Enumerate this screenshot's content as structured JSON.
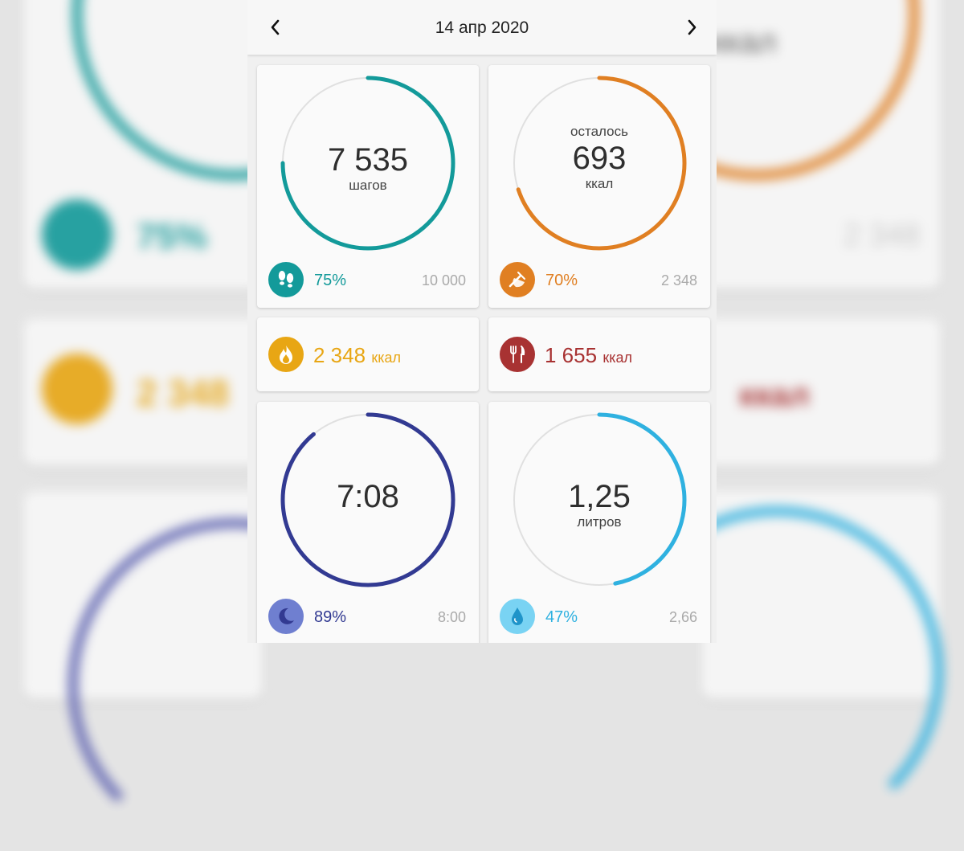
{
  "header": {
    "date": "14 апр 2020"
  },
  "steps": {
    "value": "7 535",
    "unit": "шагов",
    "percent": "75%",
    "goal": "10 000",
    "progress": 0.75,
    "color": "#139a9a",
    "icon": "footprints-icon"
  },
  "calories_left": {
    "label": "осталось",
    "value": "693",
    "unit": "ккал",
    "percent": "70%",
    "goal": "2 348",
    "progress": 0.7,
    "color": "#e07f22",
    "icon": "food-icon"
  },
  "burned": {
    "value": "2 348",
    "unit": "ккал",
    "color": "#e8a614",
    "icon": "flame-icon"
  },
  "eaten": {
    "value": "1 655",
    "unit": "ккал",
    "color": "#a83232",
    "icon": "fork-knife-icon"
  },
  "sleep": {
    "value": "7:08",
    "percent": "89%",
    "goal": "8:00",
    "progress": 0.89,
    "color": "#323a92",
    "icon": "moon-icon"
  },
  "water": {
    "value": "1,25",
    "unit": "литров",
    "percent": "47%",
    "goal": "2,66",
    "progress": 0.47,
    "color": "#2fb1e0",
    "icon": "water-drop-icon"
  }
}
